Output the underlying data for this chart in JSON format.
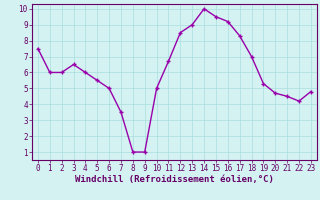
{
  "x": [
    0,
    1,
    2,
    3,
    4,
    5,
    6,
    7,
    8,
    9,
    10,
    11,
    12,
    13,
    14,
    15,
    16,
    17,
    18,
    19,
    20,
    21,
    22,
    23
  ],
  "y": [
    7.5,
    6.0,
    6.0,
    6.5,
    6.0,
    5.5,
    5.0,
    3.5,
    1.0,
    1.0,
    5.0,
    6.7,
    8.5,
    9.0,
    10.0,
    9.5,
    9.2,
    8.3,
    7.0,
    5.3,
    4.7,
    4.5,
    4.2,
    4.8
  ],
  "line_color": "#9900aa",
  "marker": "+",
  "bg_color": "#d4f2f2",
  "grid_color": "#aadddd",
  "axis_color": "#660066",
  "xlabel": "Windchill (Refroidissement éolien,°C)",
  "xlim_min": -0.5,
  "xlim_max": 23.5,
  "ylim_min": 0.5,
  "ylim_max": 10.3,
  "yticks": [
    1,
    2,
    3,
    4,
    5,
    6,
    7,
    8,
    9,
    10
  ],
  "xticks": [
    0,
    1,
    2,
    3,
    4,
    5,
    6,
    7,
    8,
    9,
    10,
    11,
    12,
    13,
    14,
    15,
    16,
    17,
    18,
    19,
    20,
    21,
    22,
    23
  ],
  "font_size_label": 6.5,
  "font_size_tick": 5.5,
  "linewidth": 1.0,
  "marker_size": 3.5,
  "marker_ew": 1.0
}
